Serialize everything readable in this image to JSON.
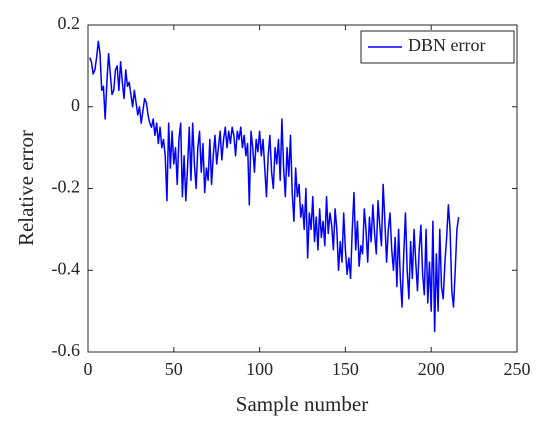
{
  "chart_data": {
    "type": "line",
    "xlabel": "Sample number",
    "ylabel": "Relative error",
    "x": [
      1,
      2,
      3,
      4,
      5,
      6,
      7,
      8,
      9,
      10,
      11,
      12,
      13,
      14,
      15,
      16,
      17,
      18,
      19,
      20,
      21,
      22,
      23,
      24,
      25,
      26,
      27,
      28,
      29,
      30,
      31,
      32,
      33,
      34,
      35,
      36,
      37,
      38,
      39,
      40,
      41,
      42,
      43,
      44,
      45,
      46,
      47,
      48,
      49,
      50,
      51,
      52,
      53,
      54,
      55,
      56,
      57,
      58,
      59,
      60,
      61,
      62,
      63,
      64,
      65,
      66,
      67,
      68,
      69,
      70,
      71,
      72,
      73,
      74,
      75,
      76,
      77,
      78,
      79,
      80,
      81,
      82,
      83,
      84,
      85,
      86,
      87,
      88,
      89,
      90,
      91,
      92,
      93,
      94,
      95,
      96,
      97,
      98,
      99,
      100,
      101,
      102,
      103,
      104,
      105,
      106,
      107,
      108,
      109,
      110,
      111,
      112,
      113,
      114,
      115,
      116,
      117,
      118,
      119,
      120,
      121,
      122,
      123,
      124,
      125,
      126,
      127,
      128,
      129,
      130,
      131,
      132,
      133,
      134,
      135,
      136,
      137,
      138,
      139,
      140,
      141,
      142,
      143,
      144,
      145,
      146,
      147,
      148,
      149,
      150,
      151,
      152,
      153,
      154,
      155,
      156,
      157,
      158,
      159,
      160,
      161,
      162,
      163,
      164,
      165,
      166,
      167,
      168,
      169,
      170,
      171,
      172,
      173,
      174,
      175,
      176,
      177,
      178,
      179,
      180,
      181,
      182,
      183,
      184,
      185,
      186,
      187,
      188,
      189,
      190,
      191,
      192,
      193,
      194,
      195,
      196,
      197,
      198,
      199,
      200,
      201,
      202,
      203,
      204,
      205,
      206,
      207,
      208,
      209,
      210,
      211,
      212,
      213,
      214,
      215,
      216
    ],
    "series": [
      {
        "name": "DBN error",
        "color": "#0000ff",
        "values": [
          0.12,
          0.11,
          0.08,
          0.09,
          0.12,
          0.16,
          0.13,
          0.04,
          0.05,
          -0.03,
          0.06,
          0.13,
          0.08,
          0.03,
          0.04,
          0.09,
          0.1,
          0.04,
          0.11,
          0.06,
          0.02,
          0.09,
          0.05,
          0.06,
          0.03,
          0.0,
          0.04,
          0.01,
          -0.02,
          0.0,
          -0.04,
          -0.01,
          0.02,
          0.01,
          -0.02,
          -0.04,
          -0.05,
          -0.03,
          -0.07,
          -0.04,
          -0.09,
          -0.05,
          -0.1,
          -0.08,
          -0.12,
          -0.23,
          -0.04,
          -0.15,
          -0.06,
          -0.14,
          -0.1,
          -0.19,
          -0.08,
          -0.04,
          -0.22,
          -0.12,
          -0.23,
          -0.15,
          -0.05,
          -0.18,
          -0.04,
          -0.14,
          -0.2,
          -0.1,
          -0.06,
          -0.16,
          -0.09,
          -0.21,
          -0.15,
          -0.18,
          -0.08,
          -0.19,
          -0.12,
          -0.07,
          -0.14,
          -0.1,
          -0.06,
          -0.13,
          -0.08,
          -0.05,
          -0.1,
          -0.06,
          -0.09,
          -0.05,
          -0.07,
          -0.12,
          -0.06,
          -0.08,
          -0.05,
          -0.1,
          -0.07,
          -0.12,
          -0.09,
          -0.24,
          -0.06,
          -0.1,
          -0.16,
          -0.08,
          -0.11,
          -0.06,
          -0.12,
          -0.08,
          -0.15,
          -0.22,
          -0.12,
          -0.07,
          -0.16,
          -0.2,
          -0.1,
          -0.14,
          -0.08,
          -0.18,
          -0.03,
          -0.15,
          -0.22,
          -0.1,
          -0.17,
          -0.07,
          -0.21,
          -0.28,
          -0.15,
          -0.22,
          -0.19,
          -0.27,
          -0.24,
          -0.3,
          -0.2,
          -0.37,
          -0.26,
          -0.3,
          -0.22,
          -0.33,
          -0.27,
          -0.35,
          -0.25,
          -0.32,
          -0.28,
          -0.34,
          -0.22,
          -0.31,
          -0.26,
          -0.29,
          -0.35,
          -0.25,
          -0.3,
          -0.4,
          -0.33,
          -0.38,
          -0.26,
          -0.35,
          -0.41,
          -0.37,
          -0.42,
          -0.3,
          -0.21,
          -0.35,
          -0.28,
          -0.39,
          -0.34,
          -0.36,
          -0.25,
          -0.3,
          -0.38,
          -0.27,
          -0.33,
          -0.24,
          -0.31,
          -0.36,
          -0.23,
          -0.29,
          -0.34,
          -0.19,
          -0.28,
          -0.38,
          -0.3,
          -0.26,
          -0.35,
          -0.4,
          -0.32,
          -0.44,
          -0.3,
          -0.42,
          -0.49,
          -0.36,
          -0.26,
          -0.4,
          -0.47,
          -0.33,
          -0.42,
          -0.3,
          -0.38,
          -0.45,
          -0.35,
          -0.29,
          -0.41,
          -0.46,
          -0.3,
          -0.48,
          -0.38,
          -0.5,
          -0.28,
          -0.55,
          -0.36,
          -0.5,
          -0.3,
          -0.44,
          -0.47,
          -0.38,
          -0.32,
          -0.24,
          -0.3,
          -0.45,
          -0.49,
          -0.4,
          -0.3,
          -0.27
        ]
      }
    ],
    "xlim": [
      0,
      250
    ],
    "xticks": [
      0,
      50,
      100,
      150,
      200,
      250
    ],
    "ylim": [
      -0.6,
      0.2
    ],
    "yticks": [
      -0.6,
      -0.4,
      -0.2,
      0,
      0.2
    ],
    "grid": false,
    "legend": "top-right"
  }
}
